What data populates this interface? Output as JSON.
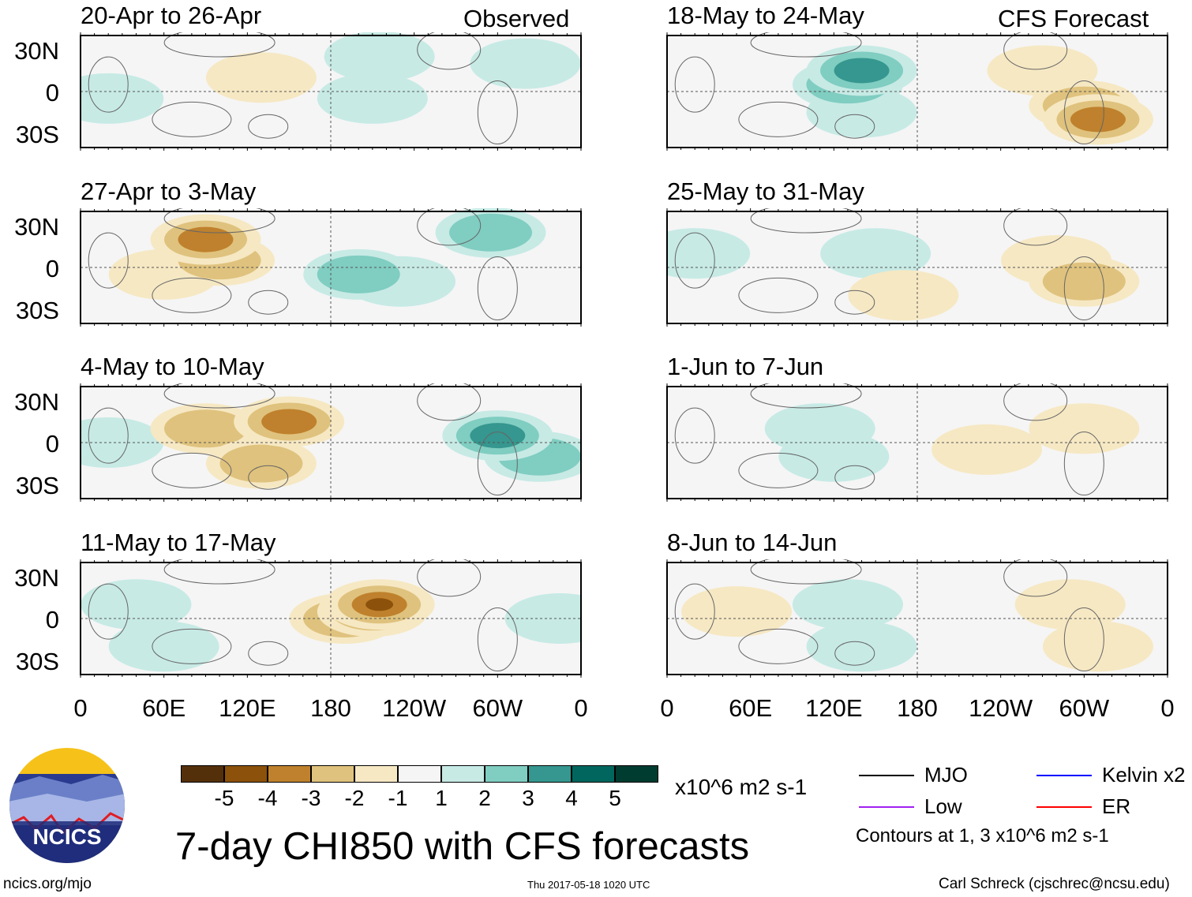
{
  "chart_data": {
    "type": "heatmap",
    "title": "7-day CHI850 with CFS forecasts",
    "units": "x10^6 m2 s-1",
    "columns": [
      {
        "label": "Observed"
      },
      {
        "label": "CFS Forecast"
      }
    ],
    "panels": [
      {
        "title": "20-Apr to 26-Apr",
        "column": 0,
        "features": [
          {
            "lon": 130,
            "lat": 10,
            "v": -1
          },
          {
            "lon": 20,
            "lat": -5,
            "v": 1
          },
          {
            "lon": 215,
            "lat": 25,
            "v": 1
          },
          {
            "lon": 210,
            "lat": -5,
            "v": 1
          },
          {
            "lon": 320,
            "lat": 20,
            "v": 1
          }
        ]
      },
      {
        "title": "27-Apr to 3-May",
        "column": 0,
        "features": [
          {
            "lon": 100,
            "lat": 5,
            "v": -2
          },
          {
            "lon": 90,
            "lat": 20,
            "v": -3
          },
          {
            "lon": 60,
            "lat": -5,
            "v": -1
          },
          {
            "lon": 200,
            "lat": -5,
            "v": 2
          },
          {
            "lon": 295,
            "lat": 25,
            "v": 2
          },
          {
            "lon": 230,
            "lat": -10,
            "v": 1
          }
        ]
      },
      {
        "title": "4-May to 10-May",
        "column": 0,
        "features": [
          {
            "lon": 150,
            "lat": 15,
            "v": -3
          },
          {
            "lon": 90,
            "lat": 10,
            "v": -2
          },
          {
            "lon": 130,
            "lat": -15,
            "v": -2
          },
          {
            "lon": 20,
            "lat": 0,
            "v": 1
          },
          {
            "lon": 300,
            "lat": 5,
            "v": 3
          },
          {
            "lon": 330,
            "lat": -10,
            "v": 2
          }
        ]
      },
      {
        "title": "11-May to 17-May",
        "column": 0,
        "features": [
          {
            "lon": 215,
            "lat": 10,
            "v": -4
          },
          {
            "lon": 210,
            "lat": 5,
            "v": -3
          },
          {
            "lon": 190,
            "lat": 0,
            "v": -2
          },
          {
            "lon": 40,
            "lat": 10,
            "v": 1
          },
          {
            "lon": 60,
            "lat": -20,
            "v": 1
          },
          {
            "lon": 345,
            "lat": 0,
            "v": 1
          }
        ]
      },
      {
        "title": "18-May to 24-May",
        "column": 1,
        "features": [
          {
            "lon": 140,
            "lat": 15,
            "v": 3
          },
          {
            "lon": 130,
            "lat": 5,
            "v": 2
          },
          {
            "lon": 140,
            "lat": -15,
            "v": 1
          },
          {
            "lon": 300,
            "lat": -10,
            "v": -2
          },
          {
            "lon": 310,
            "lat": -20,
            "v": -3
          },
          {
            "lon": 270,
            "lat": 15,
            "v": -1
          }
        ]
      },
      {
        "title": "25-May to 31-May",
        "column": 1,
        "features": [
          {
            "lon": 150,
            "lat": 10,
            "v": 1
          },
          {
            "lon": 20,
            "lat": 10,
            "v": 1
          },
          {
            "lon": 300,
            "lat": -10,
            "v": -2
          },
          {
            "lon": 280,
            "lat": 5,
            "v": -1
          },
          {
            "lon": 170,
            "lat": -20,
            "v": -1
          }
        ]
      },
      {
        "title": "1-Jun to 7-Jun",
        "column": 1,
        "features": [
          {
            "lon": 120,
            "lat": -10,
            "v": 1
          },
          {
            "lon": 110,
            "lat": 10,
            "v": 1
          },
          {
            "lon": 230,
            "lat": -5,
            "v": -1
          },
          {
            "lon": 300,
            "lat": 10,
            "v": -1
          }
        ]
      },
      {
        "title": "8-Jun to 14-Jun",
        "column": 1,
        "features": [
          {
            "lon": 130,
            "lat": 10,
            "v": 1
          },
          {
            "lon": 140,
            "lat": -20,
            "v": 1
          },
          {
            "lon": 50,
            "lat": 5,
            "v": -1
          },
          {
            "lon": 290,
            "lat": 10,
            "v": -1
          },
          {
            "lon": 310,
            "lat": -20,
            "v": -1
          }
        ]
      }
    ],
    "lat_ticks": [
      "30N",
      "0",
      "30S"
    ],
    "lon_ticks": [
      "0",
      "60E",
      "120E",
      "180",
      "120W",
      "60W",
      "0"
    ],
    "colorbar": {
      "labels": [
        "-5",
        "-4",
        "-3",
        "-2",
        "-1",
        "1",
        "2",
        "3",
        "4",
        "5"
      ],
      "colors": [
        "#54300a",
        "#8c510a",
        "#bf812d",
        "#dfc27d",
        "#f6e8c3",
        "#f5f5f5",
        "#c7eae5",
        "#80cdc1",
        "#35978f",
        "#01665e",
        "#003c30"
      ]
    },
    "legend": [
      {
        "label": "MJO",
        "color": "#000000"
      },
      {
        "label": "Kelvin x2",
        "color": "#0000ff"
      },
      {
        "label": "Low",
        "color": "#a020f0"
      },
      {
        "label": "ER",
        "color": "#ff0000"
      }
    ],
    "contour_note": "Contours at 1, 3 x10^6 m2 s-1"
  },
  "logo_text": "NCICS",
  "footer": {
    "url": "ncics.org/mjo",
    "timestamp": "Thu 2017-05-18 1020 UTC",
    "author": "Carl Schreck (cjschrec@ncsu.edu)"
  }
}
